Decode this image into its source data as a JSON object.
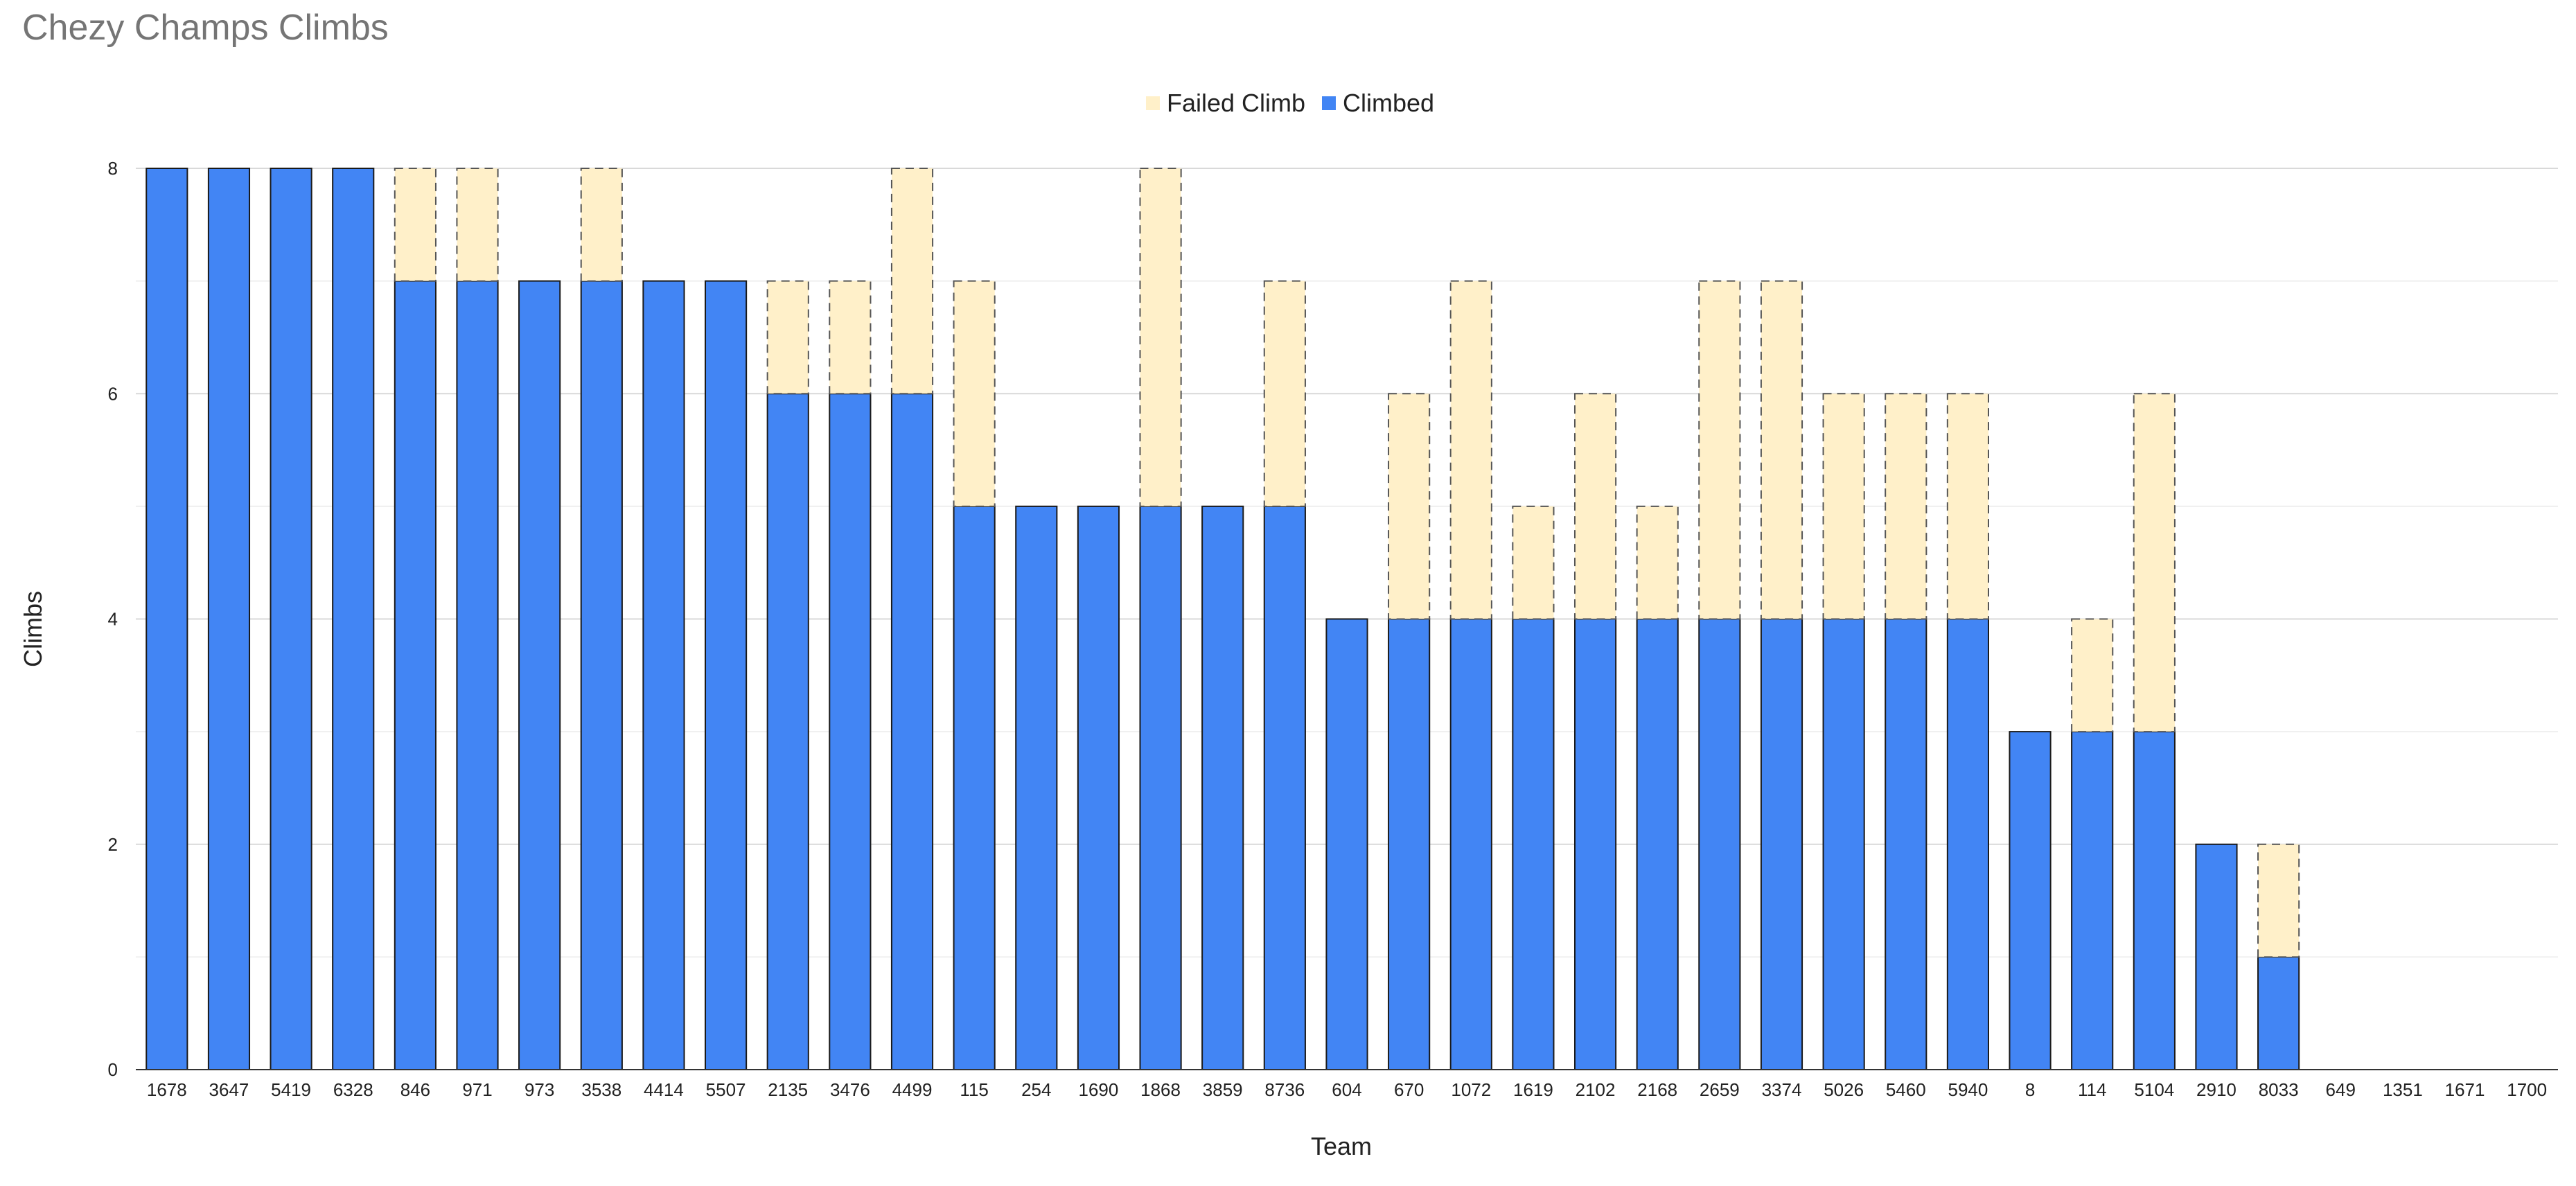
{
  "chart_data": {
    "type": "bar",
    "stacked": true,
    "title": "Chezy Champs Climbs",
    "xlabel": "Team",
    "ylabel": "Climbs",
    "ylim": [
      0,
      8
    ],
    "yticks": [
      0,
      2,
      4,
      6,
      8
    ],
    "grid": true,
    "legend_position": "top",
    "categories": [
      "1678",
      "3647",
      "5419",
      "6328",
      "846",
      "971",
      "973",
      "3538",
      "4414",
      "5507",
      "2135",
      "3476",
      "4499",
      "115",
      "254",
      "1690",
      "1868",
      "3859",
      "8736",
      "604",
      "670",
      "1072",
      "1619",
      "2102",
      "2168",
      "2659",
      "3374",
      "5026",
      "5460",
      "5940",
      "8",
      "114",
      "5104",
      "2910",
      "8033",
      "649",
      "1351",
      "1671",
      "1700"
    ],
    "series": [
      {
        "name": "Climbed",
        "color": "#4285f4",
        "values": [
          8,
          8,
          8,
          8,
          7,
          7,
          7,
          7,
          7,
          7,
          6,
          6,
          6,
          5,
          5,
          5,
          5,
          5,
          5,
          4,
          4,
          4,
          4,
          4,
          4,
          4,
          4,
          4,
          4,
          4,
          3,
          3,
          3,
          2,
          1,
          0,
          0,
          0,
          0
        ]
      },
      {
        "name": "Failed Climb",
        "color": "#fff0c9",
        "values": [
          0,
          0,
          0,
          0,
          1,
          1,
          0,
          1,
          0,
          0,
          1,
          1,
          2,
          2,
          0,
          0,
          3,
          0,
          2,
          0,
          2,
          3,
          1,
          2,
          1,
          3,
          3,
          2,
          2,
          2,
          0,
          1,
          3,
          0,
          1,
          0,
          0,
          0,
          0
        ]
      }
    ]
  }
}
